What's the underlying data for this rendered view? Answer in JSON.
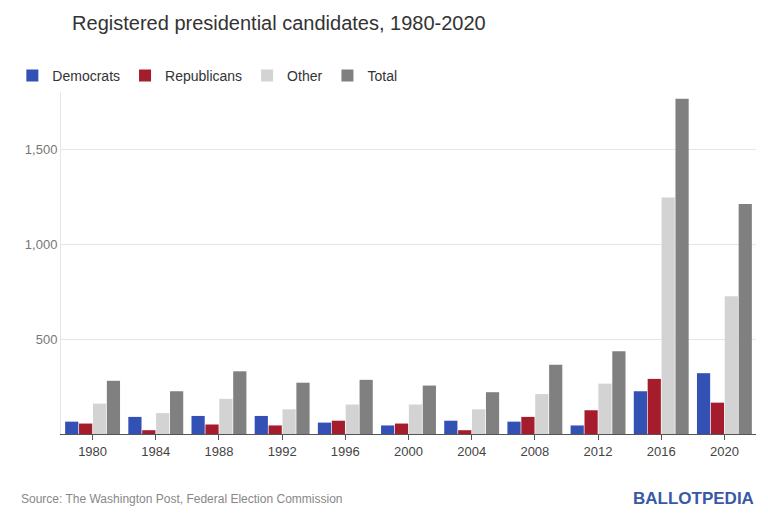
{
  "chart_data": {
    "type": "bar",
    "title": "Registered presidential candidates, 1980-2020",
    "categories": [
      "1980",
      "1984",
      "1988",
      "1992",
      "1996",
      "2000",
      "2004",
      "2008",
      "2012",
      "2016",
      "2020"
    ],
    "series": [
      {
        "name": "Democrats",
        "color": "#3350b5",
        "values": [
          65,
          90,
          95,
          95,
          60,
          45,
          70,
          65,
          45,
          225,
          320
        ]
      },
      {
        "name": "Republicans",
        "color": "#a51d2d",
        "values": [
          55,
          20,
          50,
          45,
          70,
          55,
          20,
          90,
          125,
          290,
          165
        ]
      },
      {
        "name": "Other",
        "color": "#d3d3d3",
        "values": [
          160,
          110,
          185,
          130,
          155,
          155,
          130,
          210,
          265,
          1245,
          725
        ]
      },
      {
        "name": "Total",
        "color": "#808080",
        "values": [
          280,
          225,
          330,
          270,
          285,
          255,
          220,
          365,
          435,
          1765,
          1210
        ]
      }
    ],
    "ylim": [
      0,
      1800
    ],
    "yticks": [
      500,
      {
        "value": 1000,
        "label": "1,000"
      },
      {
        "value": 1500,
        "label": "1,500"
      }
    ],
    "grid": true,
    "legend": "top left",
    "source": "Source: The Washington Post, Federal Election Commission",
    "credit": "BALLOTPEDIA"
  }
}
